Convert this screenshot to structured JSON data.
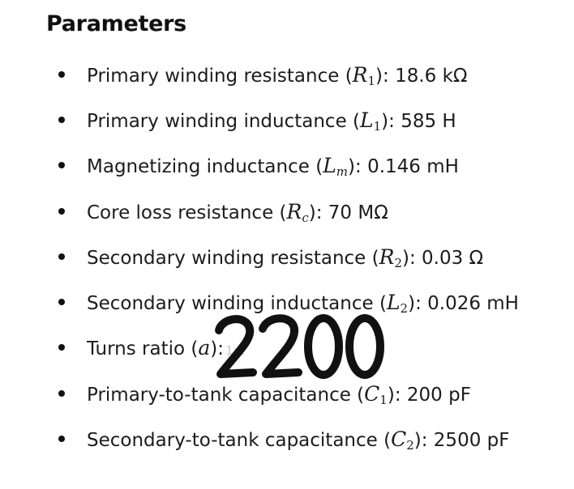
{
  "heading": "Parameters",
  "parameters": [
    {
      "label": "Primary winding resistance (",
      "symbol": "R",
      "sub": "1",
      "sub_italic": false,
      "suffix": "): 18.6 kΩ"
    },
    {
      "label": "Primary winding inductance (",
      "symbol": "L",
      "sub": "1",
      "sub_italic": false,
      "suffix": "): 585 H"
    },
    {
      "label": "Magnetizing inductance (",
      "symbol": "L",
      "sub": "m",
      "sub_italic": true,
      "suffix": "): 0.146 mH"
    },
    {
      "label": "Core loss resistance (",
      "symbol": "R",
      "sub": "c",
      "sub_italic": true,
      "suffix": "): 70 MΩ"
    },
    {
      "label": "Secondary winding resistance (",
      "symbol": "R",
      "sub": "2",
      "sub_italic": false,
      "suffix": "): 0.03 Ω"
    },
    {
      "label": "Secondary winding inductance (",
      "symbol": "L",
      "sub": "2",
      "sub_italic": false,
      "suffix": "): 0.026 mH"
    },
    {
      "label": "Turns ratio (",
      "symbol": "a",
      "sub": "",
      "sub_italic": false,
      "suffix": "):",
      "ghost": "1:1"
    },
    {
      "label": "Primary-to-tank capacitance (",
      "symbol": "C",
      "sub": "1",
      "sub_italic": false,
      "suffix": "): 200 pF"
    },
    {
      "label": "Secondary-to-tank capacitance (",
      "symbol": "C",
      "sub": "2",
      "sub_italic": false,
      "suffix": "): 2500 pF"
    }
  ],
  "handwritten_annotation": "2200",
  "colors": {
    "text": "#1c1c1c",
    "ink": "#111111",
    "ghost": "#c8c8c8"
  }
}
